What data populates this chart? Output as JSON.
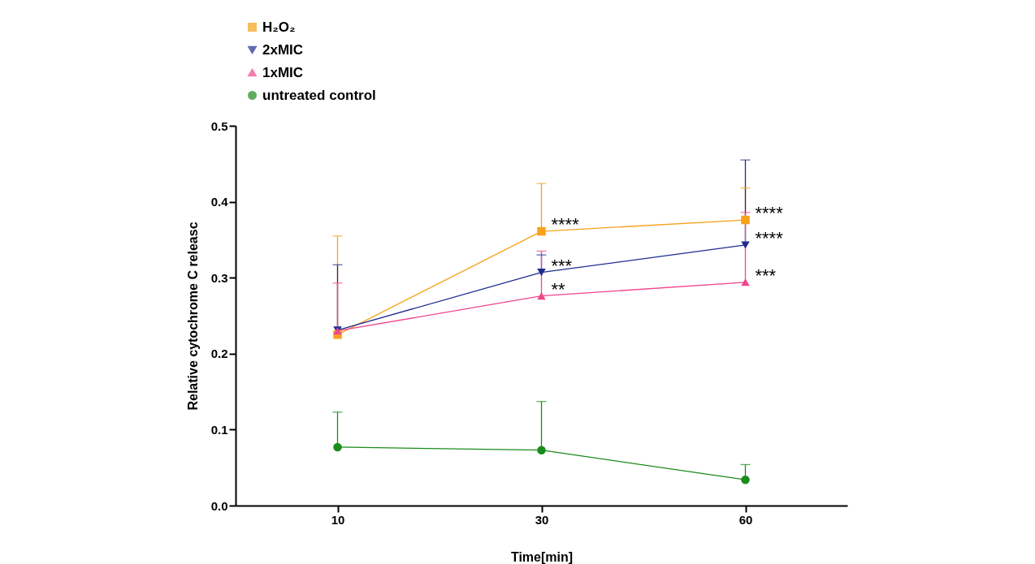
{
  "chart_data": {
    "type": "line",
    "xlabel": "Time[min]",
    "ylabel": "Relative cytochrome C releasc",
    "categories": [
      "10",
      "30",
      "60"
    ],
    "ylim": [
      0,
      0.5
    ],
    "yticks": [
      {
        "value": 0,
        "label": "0.0"
      },
      {
        "value": 0.1,
        "label": "0.1"
      },
      {
        "value": 0.2,
        "label": "0.2"
      },
      {
        "value": 0.3,
        "label": "0.3"
      },
      {
        "value": 0.4,
        "label": "0.4"
      },
      {
        "value": 0.5,
        "label": "0.5"
      }
    ],
    "grid": false,
    "legend": "top left",
    "series": [
      {
        "name": "H₂O₂",
        "color": "#f7a21b",
        "marker": "square",
        "values": [
          0.225,
          0.361,
          0.376
        ],
        "errors": [
          [
            0.225,
            0.355
          ],
          [
            0.361,
            0.424
          ],
          [
            0.376,
            0.418
          ]
        ]
      },
      {
        "name": "2xMIC",
        "color": "#1f2c8f",
        "marker": "triangle-down",
        "values": [
          0.231,
          0.307,
          0.343
        ],
        "errors": [
          [
            0.231,
            0.317
          ],
          [
            0.307,
            0.33
          ],
          [
            0.343,
            0.455
          ]
        ]
      },
      {
        "name": "1xMIC",
        "color": "#f0468c",
        "marker": "triangle",
        "values": [
          0.23,
          0.276,
          0.294
        ],
        "errors": [
          [
            0.23,
            0.293
          ],
          [
            0.276,
            0.335
          ],
          [
            0.294,
            0.386
          ]
        ]
      },
      {
        "name": "untreated control",
        "color": "#1a8c1a",
        "marker": "circle",
        "values": [
          0.077,
          0.073,
          0.034
        ],
        "errors": [
          [
            0.077,
            0.123
          ],
          [
            0.073,
            0.137
          ],
          [
            0.034,
            0.054
          ]
        ]
      }
    ],
    "annotations": [
      {
        "text": "****",
        "x": "30",
        "y": 0.361
      },
      {
        "text": "***",
        "x": "30",
        "y": 0.307
      },
      {
        "text": "**",
        "x": "30",
        "y": 0.276
      },
      {
        "text": "****",
        "x": "60",
        "y": 0.376
      },
      {
        "text": "****",
        "x": "60",
        "y": 0.343
      },
      {
        "text": "***",
        "x": "60",
        "y": 0.294
      }
    ]
  }
}
